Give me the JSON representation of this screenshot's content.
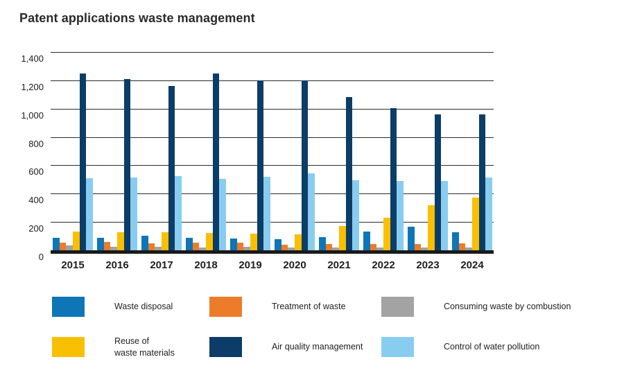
{
  "title": "Patent applications waste management",
  "chart_data": {
    "type": "bar",
    "title": "Patent applications waste management",
    "categories": [
      "2015",
      "2016",
      "2017",
      "2018",
      "2019",
      "2020",
      "2021",
      "2022",
      "2023",
      "2024"
    ],
    "series": [
      {
        "name": "Waste disposal",
        "color": "#0e75b7",
        "values": [
          90,
          90,
          105,
          90,
          85,
          80,
          95,
          130,
          165,
          125
        ]
      },
      {
        "name": "Treatment of waste",
        "color": "#ec7c2a",
        "values": [
          55,
          60,
          50,
          55,
          55,
          40,
          45,
          45,
          45,
          48
        ]
      },
      {
        "name": "Consuming waste by combustion",
        "color": "#a3a3a3",
        "values": [
          35,
          25,
          25,
          20,
          25,
          18,
          18,
          22,
          18,
          20
        ]
      },
      {
        "name": "Reuse of waste materials",
        "color": "#f9bf02",
        "values": [
          130,
          125,
          125,
          120,
          118,
          115,
          170,
          228,
          320,
          372
        ]
      },
      {
        "name": "Air quality management",
        "color": "#0b3d68",
        "values": [
          1250,
          1210,
          1160,
          1250,
          1200,
          1200,
          1080,
          1005,
          960,
          960
        ]
      },
      {
        "name": "Control of water pollution",
        "color": "#88cdf0",
        "values": [
          510,
          515,
          525,
          505,
          518,
          545,
          492,
          490,
          490,
          512
        ]
      }
    ],
    "ylim": [
      0,
      1400
    ],
    "yticks": [
      0,
      200,
      400,
      600,
      800,
      1000,
      1200,
      1400
    ],
    "ytick_labels": [
      "0",
      "200",
      "400",
      "600",
      "800",
      "1,000",
      "1,200",
      "1,400"
    ],
    "grid": true,
    "legend_position": "bottom"
  },
  "legend": {
    "rows": [
      [
        {
          "label_lines": [
            "Waste disposal"
          ],
          "color": "#0e75b7"
        },
        {
          "label_lines": [
            "Treatment of waste"
          ],
          "color": "#ec7c2a"
        },
        {
          "label_lines": [
            "Consuming waste by combustion"
          ],
          "color": "#a3a3a3"
        }
      ],
      [
        {
          "label_lines": [
            "Reuse of",
            "waste materials"
          ],
          "color": "#f9bf02"
        },
        {
          "label_lines": [
            "Air quality management"
          ],
          "color": "#0b3d68"
        },
        {
          "label_lines": [
            "Control of water pollution"
          ],
          "color": "#88cdf0"
        }
      ]
    ]
  }
}
